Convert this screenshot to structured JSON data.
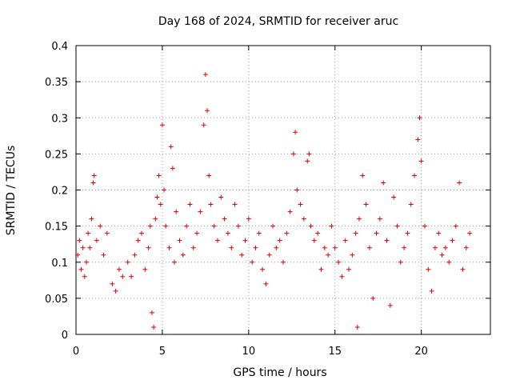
{
  "chart_data": {
    "type": "scatter",
    "title": "Day 168 of 2024, SRMTID for receiver aruc",
    "xlabel": "GPS time / hours",
    "ylabel": "SRMTID / TECUs",
    "xlim": [
      0,
      24
    ],
    "ylim": [
      0,
      0.4
    ],
    "xticks": [
      0,
      5,
      10,
      15,
      20
    ],
    "xtick_labels": [
      "0",
      "5",
      "10",
      "15",
      "20"
    ],
    "yticks": [
      0,
      0.05,
      0.1,
      0.15,
      0.2,
      0.25,
      0.3,
      0.35,
      0.4
    ],
    "ytick_labels": [
      "0",
      "0.05",
      "0.1",
      "0.15",
      "0.2",
      "0.25",
      "0.3",
      "0.35",
      "0.4"
    ],
    "grid": true,
    "marker": "+",
    "color": "#e00000",
    "series": [
      {
        "name": "SRMTID",
        "points": [
          [
            0.1,
            0.11
          ],
          [
            0.2,
            0.13
          ],
          [
            0.3,
            0.09
          ],
          [
            0.4,
            0.12
          ],
          [
            0.5,
            0.08
          ],
          [
            0.6,
            0.1
          ],
          [
            0.7,
            0.14
          ],
          [
            0.8,
            0.12
          ],
          [
            0.9,
            0.16
          ],
          [
            1.0,
            0.21
          ],
          [
            1.05,
            0.22
          ],
          [
            1.2,
            0.13
          ],
          [
            1.4,
            0.15
          ],
          [
            1.6,
            0.11
          ],
          [
            1.8,
            0.14
          ],
          [
            2.1,
            0.07
          ],
          [
            2.3,
            0.06
          ],
          [
            2.5,
            0.09
          ],
          [
            2.7,
            0.08
          ],
          [
            3.0,
            0.1
          ],
          [
            3.2,
            0.08
          ],
          [
            3.4,
            0.11
          ],
          [
            3.6,
            0.13
          ],
          [
            3.8,
            0.14
          ],
          [
            4.0,
            0.09
          ],
          [
            4.2,
            0.12
          ],
          [
            4.3,
            0.15
          ],
          [
            4.4,
            0.03
          ],
          [
            4.5,
            0.01
          ],
          [
            4.6,
            0.16
          ],
          [
            4.7,
            0.19
          ],
          [
            4.8,
            0.22
          ],
          [
            4.9,
            0.18
          ],
          [
            5.0,
            0.29
          ],
          [
            5.1,
            0.2
          ],
          [
            5.2,
            0.15
          ],
          [
            5.4,
            0.12
          ],
          [
            5.5,
            0.26
          ],
          [
            5.6,
            0.23
          ],
          [
            5.7,
            0.1
          ],
          [
            5.8,
            0.17
          ],
          [
            6.0,
            0.13
          ],
          [
            6.2,
            0.11
          ],
          [
            6.4,
            0.15
          ],
          [
            6.6,
            0.18
          ],
          [
            6.8,
            0.12
          ],
          [
            7.0,
            0.14
          ],
          [
            7.2,
            0.17
          ],
          [
            7.4,
            0.29
          ],
          [
            7.5,
            0.36
          ],
          [
            7.6,
            0.31
          ],
          [
            7.7,
            0.22
          ],
          [
            7.8,
            0.18
          ],
          [
            8.0,
            0.15
          ],
          [
            8.2,
            0.13
          ],
          [
            8.4,
            0.19
          ],
          [
            8.6,
            0.16
          ],
          [
            8.8,
            0.14
          ],
          [
            9.0,
            0.12
          ],
          [
            9.2,
            0.18
          ],
          [
            9.4,
            0.15
          ],
          [
            9.6,
            0.11
          ],
          [
            9.8,
            0.13
          ],
          [
            10.0,
            0.16
          ],
          [
            10.2,
            0.1
          ],
          [
            10.4,
            0.12
          ],
          [
            10.6,
            0.14
          ],
          [
            10.8,
            0.09
          ],
          [
            11.0,
            0.07
          ],
          [
            11.2,
            0.11
          ],
          [
            11.4,
            0.15
          ],
          [
            11.6,
            0.12
          ],
          [
            11.8,
            0.13
          ],
          [
            12.0,
            0.1
          ],
          [
            12.2,
            0.14
          ],
          [
            12.4,
            0.17
          ],
          [
            12.6,
            0.25
          ],
          [
            12.7,
            0.28
          ],
          [
            12.8,
            0.2
          ],
          [
            13.0,
            0.18
          ],
          [
            13.2,
            0.16
          ],
          [
            13.4,
            0.24
          ],
          [
            13.5,
            0.25
          ],
          [
            13.6,
            0.15
          ],
          [
            13.8,
            0.13
          ],
          [
            14.0,
            0.14
          ],
          [
            14.2,
            0.09
          ],
          [
            14.4,
            0.12
          ],
          [
            14.6,
            0.11
          ],
          [
            14.8,
            0.15
          ],
          [
            15.0,
            0.12
          ],
          [
            15.2,
            0.1
          ],
          [
            15.4,
            0.08
          ],
          [
            15.6,
            0.13
          ],
          [
            15.8,
            0.09
          ],
          [
            16.0,
            0.11
          ],
          [
            16.2,
            0.14
          ],
          [
            16.3,
            0.01
          ],
          [
            16.4,
            0.16
          ],
          [
            16.6,
            0.22
          ],
          [
            16.8,
            0.18
          ],
          [
            17.0,
            0.12
          ],
          [
            17.2,
            0.05
          ],
          [
            17.4,
            0.14
          ],
          [
            17.6,
            0.16
          ],
          [
            17.8,
            0.21
          ],
          [
            18.0,
            0.13
          ],
          [
            18.2,
            0.04
          ],
          [
            18.4,
            0.19
          ],
          [
            18.6,
            0.15
          ],
          [
            18.8,
            0.1
          ],
          [
            19.0,
            0.12
          ],
          [
            19.2,
            0.14
          ],
          [
            19.4,
            0.18
          ],
          [
            19.6,
            0.22
          ],
          [
            19.8,
            0.27
          ],
          [
            19.9,
            0.3
          ],
          [
            20.0,
            0.24
          ],
          [
            20.2,
            0.15
          ],
          [
            20.4,
            0.09
          ],
          [
            20.6,
            0.06
          ],
          [
            20.8,
            0.12
          ],
          [
            21.0,
            0.14
          ],
          [
            21.2,
            0.11
          ],
          [
            21.4,
            0.12
          ],
          [
            21.6,
            0.1
          ],
          [
            21.8,
            0.13
          ],
          [
            22.0,
            0.15
          ],
          [
            22.2,
            0.21
          ],
          [
            22.4,
            0.09
          ],
          [
            22.6,
            0.12
          ],
          [
            22.8,
            0.14
          ]
        ]
      }
    ]
  }
}
